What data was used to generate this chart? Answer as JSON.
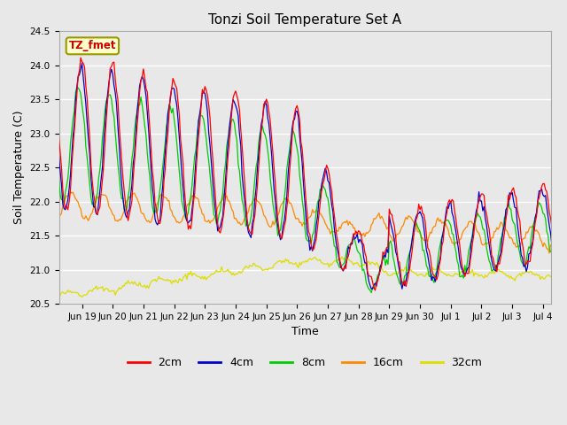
{
  "title": "Tonzi Soil Temperature Set A",
  "xlabel": "Time",
  "ylabel": "Soil Temperature (C)",
  "ylim": [
    20.5,
    24.5
  ],
  "annotation": "TZ_fmet",
  "legend_labels": [
    "2cm",
    "4cm",
    "8cm",
    "16cm",
    "32cm"
  ],
  "legend_colors": [
    "#ff0000",
    "#0000cc",
    "#00cc00",
    "#ff8800",
    "#dddd00"
  ],
  "bg_color": "#e8e8e8",
  "fig_bg_color": "#e8e8e8",
  "grid_color": "#ffffff",
  "title_fontsize": 11,
  "axis_fontsize": 9,
  "tick_fontsize": 7.5
}
